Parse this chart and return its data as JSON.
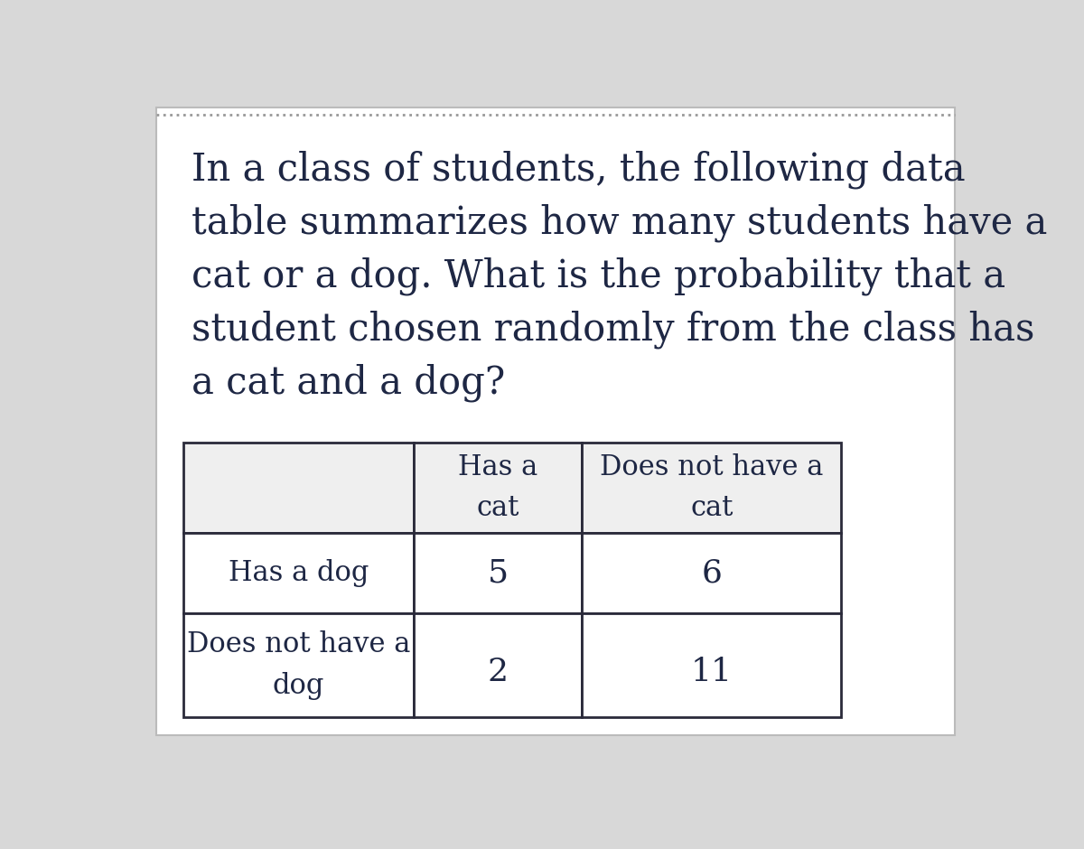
{
  "background_color": "#d8d8d8",
  "card_color": "#ffffff",
  "header_cell_color": "#efefef",
  "data_cell_color": "#ffffff",
  "border_color": "#2a2a3a",
  "text_color": "#1e2744",
  "dashed_line_color": "#999999",
  "paragraph_text": "In a class of students, the following data\ntable summarizes how many students have a\ncat or a dog. What is the probability that a\nstudent chosen randomly from the class has\na cat and a dog?",
  "col_headers": [
    "Has a\ncat",
    "Does not have a\ncat"
  ],
  "row_headers": [
    "Has a dog",
    "Does not have a\ndog"
  ],
  "table_data": [
    [
      5,
      6
    ],
    [
      2,
      11
    ]
  ],
  "font_size_paragraph": 30,
  "font_size_table_header": 22,
  "font_size_table_data": 26
}
